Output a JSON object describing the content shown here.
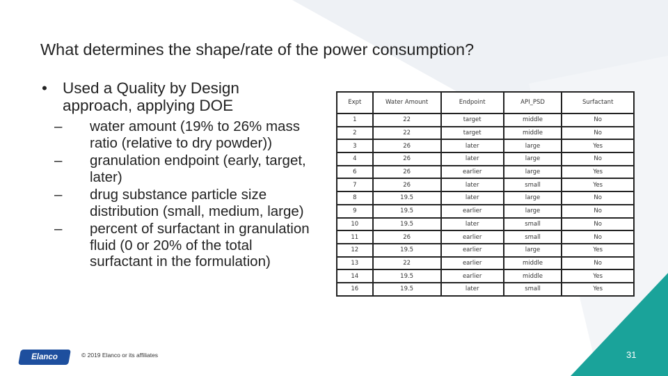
{
  "slide": {
    "title": "What determines the shape/rate of the power consumption?",
    "bullet_marker": "•",
    "main_bullet": "Used a Quality by Design approach, applying DOE",
    "sub_marker": "–",
    "sub_bullets": [
      "water amount (19% to 26% mass ratio (relative to dry powder))",
      "granulation endpoint (early, target, later)",
      "drug substance particle size distribution (small, medium, large)",
      "percent of surfactant in granulation fluid (0 or 20% of the total surfactant in the formulation)"
    ],
    "footer": {
      "logo_text": "Elanco",
      "copyright": "© 2019 Elanco or its affiliates",
      "slide_number": "31"
    }
  },
  "table": {
    "headers": [
      "Expt",
      "Water Amount",
      "Endpoint",
      "API_PSD",
      "Surfactant"
    ],
    "rows": [
      [
        "1",
        "22",
        "target",
        "middle",
        "No"
      ],
      [
        "2",
        "22",
        "target",
        "middle",
        "No"
      ],
      [
        "3",
        "26",
        "later",
        "large",
        "Yes"
      ],
      [
        "4",
        "26",
        "later",
        "large",
        "No"
      ],
      [
        "6",
        "26",
        "earlier",
        "large",
        "Yes"
      ],
      [
        "7",
        "26",
        "later",
        "small",
        "Yes"
      ],
      [
        "8",
        "19.5",
        "later",
        "large",
        "No"
      ],
      [
        "9",
        "19.5",
        "earlier",
        "large",
        "No"
      ],
      [
        "10",
        "19.5",
        "later",
        "small",
        "No"
      ],
      [
        "11",
        "26",
        "earlier",
        "small",
        "No"
      ],
      [
        "12",
        "19.5",
        "earlier",
        "large",
        "Yes"
      ],
      [
        "13",
        "22",
        "earlier",
        "middle",
        "No"
      ],
      [
        "14",
        "19.5",
        "earlier",
        "middle",
        "Yes"
      ],
      [
        "16",
        "19.5",
        "later",
        "small",
        "Yes"
      ]
    ]
  },
  "colors": {
    "accent_teal": "#1aa39a",
    "accent_blue": "#1e4f9e",
    "background_shape": "#eef1f5"
  }
}
